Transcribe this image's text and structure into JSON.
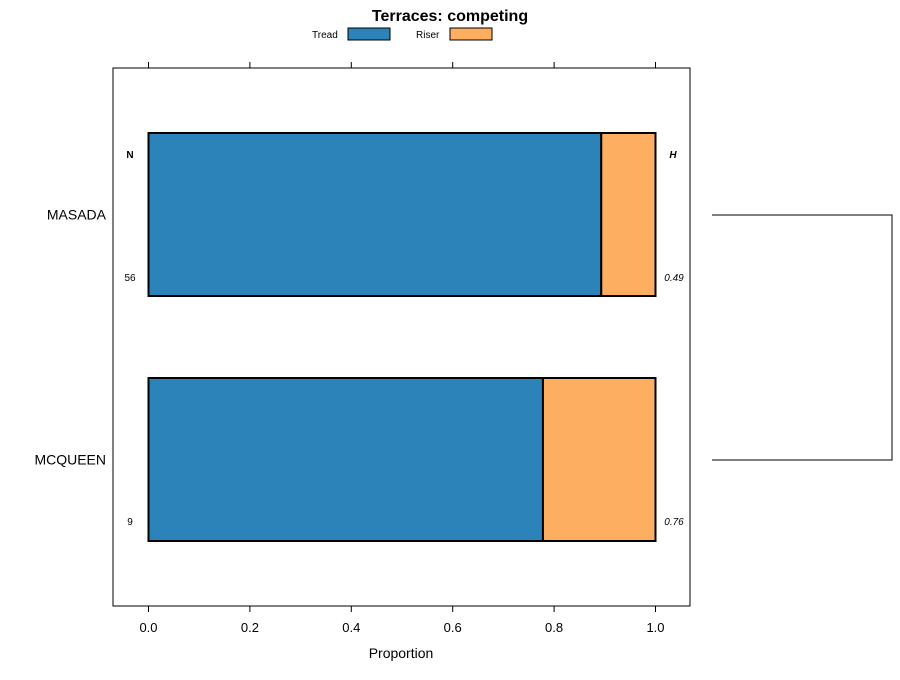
{
  "chart_data": {
    "type": "bar",
    "orientation": "horizontal",
    "stacked": true,
    "title": "Terraces: competing",
    "xlabel": "Proportion",
    "ylabel": "",
    "xlim": [
      -0.07,
      1.07
    ],
    "xticks": [
      "0.0",
      "0.2",
      "0.4",
      "0.6",
      "0.8",
      "1.0"
    ],
    "categories": [
      "MASADA",
      "MCQUEEN"
    ],
    "series": [
      {
        "name": "Tread",
        "color": "#2c83b9",
        "values": [
          0.893,
          0.778
        ]
      },
      {
        "name": "Riser",
        "color": "#fdae61",
        "values": [
          0.107,
          0.222
        ]
      }
    ],
    "n_header": "N",
    "n_values": [
      "56",
      "9"
    ],
    "h_header": "H",
    "h_values": [
      "0.49",
      "0.76"
    ],
    "legend_position": "top",
    "grid": false,
    "dendrogram": true
  }
}
